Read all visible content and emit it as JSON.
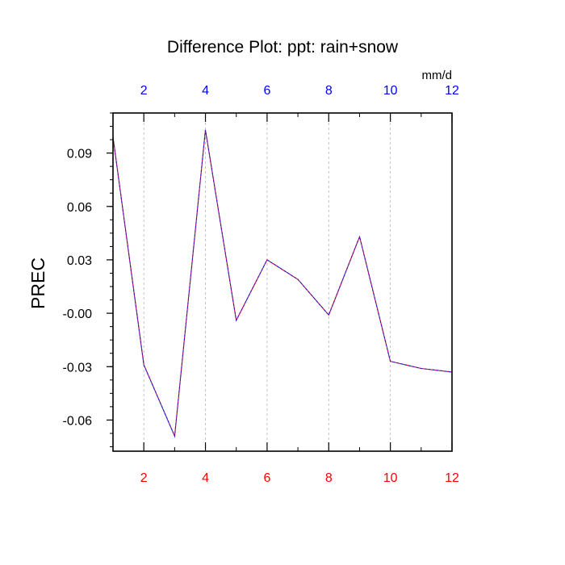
{
  "chart_data": {
    "type": "line",
    "title": "Difference Plot: ppt: rain+snow",
    "units_label": "mm/d",
    "ylabel": "PREC",
    "xlabel": "",
    "x": [
      1,
      2,
      3,
      4,
      5,
      6,
      7,
      8,
      9,
      10,
      11,
      12
    ],
    "series": [
      {
        "values": [
          0.099,
          -0.029,
          -0.069,
          0.103,
          -0.004,
          0.03,
          0.019,
          -0.001,
          0.043,
          -0.027,
          -0.031,
          -0.033
        ]
      }
    ],
    "xlim": [
      1,
      12
    ],
    "ylim": [
      -0.0775,
      0.1125
    ],
    "x_ticks": [
      2,
      4,
      6,
      8,
      10,
      12
    ],
    "y_ticks": [
      0.09,
      0.06,
      0.03,
      0.0,
      -0.03,
      -0.06
    ],
    "y_tick_labels": [
      "0.09",
      "0.06",
      "0.03",
      "-0.00",
      "-0.03",
      "-0.06"
    ],
    "grid": "vertical dashed at x ticks",
    "colors": {
      "line": "#5a17a8",
      "bottom_tick_labels": "#ff0000",
      "top_tick_labels": "#0000ff",
      "grid": "#b4b4b4"
    }
  }
}
